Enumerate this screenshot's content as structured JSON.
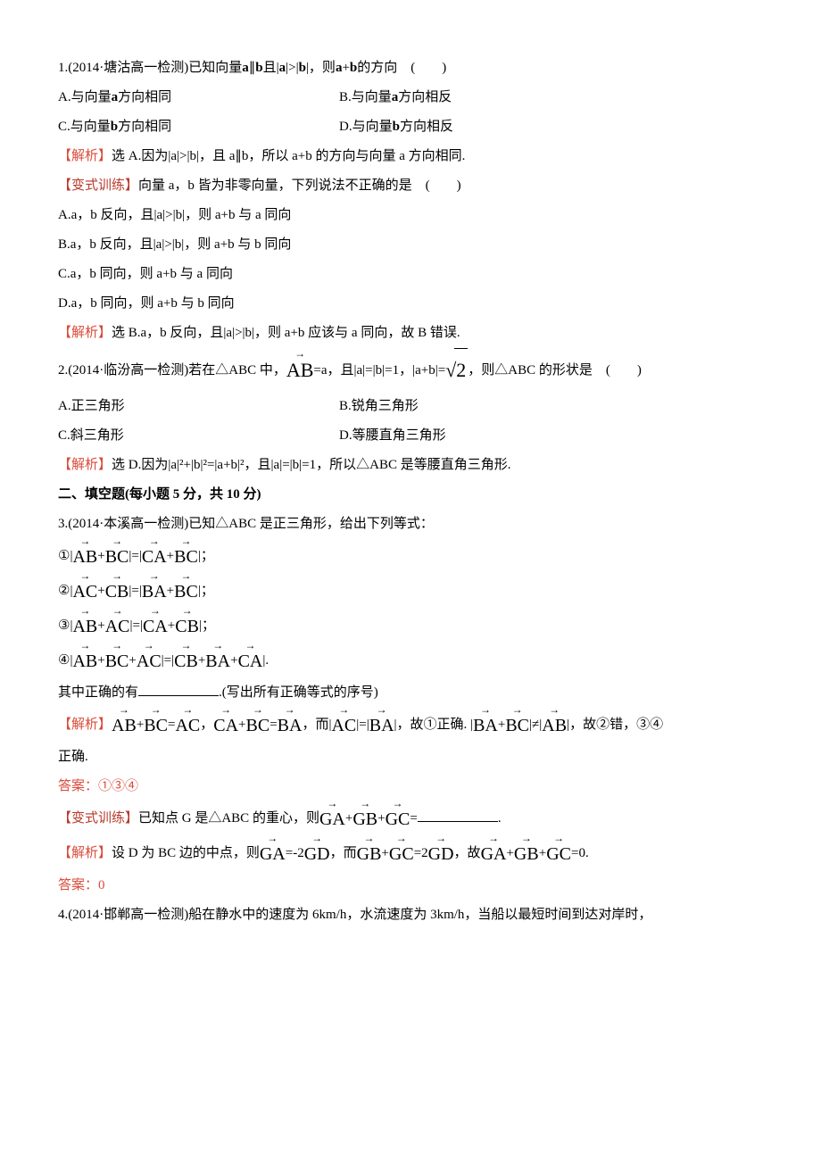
{
  "q1": {
    "stem_a": "1.(2014·塘沽高一检测)已知向量",
    "stem_b": "a",
    "stem_c": "∥",
    "stem_d": "b",
    "stem_e": "且|",
    "stem_f": "a",
    "stem_g": "|>|",
    "stem_h": "b",
    "stem_i": "|，则",
    "stem_j": "a",
    "stem_k": "+",
    "stem_l": "b",
    "stem_m": "的方向　(　　)",
    "optA": "A.与向量",
    "optA_v": "a",
    "optA_t": "方向相同",
    "optB": "B.与向量",
    "optB_v": "a",
    "optB_t": "方向相反",
    "optC": "C.与向量",
    "optC_v": "b",
    "optC_t": "方向相同",
    "optD": "D.与向量",
    "optD_v": "b",
    "optD_t": "方向相反",
    "sol_tag": "【解析】",
    "sol": "选 A.因为|a|>|b|，且 a∥b，所以 a+b 的方向与向量 a 方向相同."
  },
  "v1": {
    "tag": "【变式训练】",
    "stem": "向量 a，b 皆为非零向量，下列说法不正确的是　(　　)",
    "A": "A.a，b 反向，且|a|>|b|，则 a+b 与 a 同向",
    "B": "B.a，b 反向，且|a|>|b|，则 a+b 与 b 同向",
    "C": "C.a，b 同向，则 a+b 与 a 同向",
    "D": "D.a，b 同向，则 a+b 与 b 同向",
    "sol_tag": "【解析】",
    "sol": "选 B.a，b 反向，且|a|>|b|，则 a+b 应该与 a 同向，故 B 错误."
  },
  "q2": {
    "stem_a": "2.(2014·临汾高一检测)若在△ABC 中，",
    "vec": "AB",
    "stem_b": "=a，且|a|=|b|=1，|a+b|=",
    "rad": "2",
    "stem_c": "，则△ABC 的形状是　(　　)",
    "A": "A.正三角形",
    "B": "B.锐角三角形",
    "C": "C.斜三角形",
    "D": "D.等腰直角三角形",
    "sol_tag": "【解析】",
    "sol": "选 D.因为|a|²+|b|²=|a+b|²，且|a|=|b|=1，所以△ABC 是等腰直角三角形."
  },
  "sec2": "二、填空题(每小题 5 分，共 10 分)",
  "q3": {
    "stem": "3.(2014·本溪高一检测)已知△ABC 是正三角形，给出下列等式：",
    "e1_a": "①|",
    "e1_v1": "AB",
    "e1_p": "+",
    "e1_v2": "BC",
    "e1_m": "|=|",
    "e1_v3": "CA",
    "e1_p2": "+",
    "e1_v4": "BC",
    "e1_e": "|；",
    "e2_a": "②|",
    "e2_v1": "AC",
    "e2_p": "+",
    "e2_v2": "CB",
    "e2_m": "|=|",
    "e2_v3": "BA",
    "e2_p2": "+",
    "e2_v4": "BC",
    "e2_e": "|；",
    "e3_a": "③|",
    "e3_v1": "AB",
    "e3_p": "+",
    "e3_v2": "AC",
    "e3_m": "|=|",
    "e3_v3": "CA",
    "e3_p2": "+",
    "e3_v4": "CB",
    "e3_e": "|；",
    "e4_a": "④|",
    "e4_v1": "AB",
    "e4_p": "+",
    "e4_v2": "BC",
    "e4_p2": "+",
    "e4_v3": "AC",
    "e4_m": "|=|",
    "e4_v4": "CB",
    "e4_p3": "+",
    "e4_v5": "BA",
    "e4_p4": "+",
    "e4_v6": "CA",
    "e4_e": "|.",
    "tail_a": "其中正确的有",
    "tail_b": ".(写出所有正确等式的序号)",
    "sol_tag": "【解析】",
    "s_v1": "AB",
    "s_p1": "+",
    "s_v2": "BC",
    "s_eq1": "=",
    "s_v3": "AC",
    "s_c1": "，",
    "s_v4": "CA",
    "s_p2": "+",
    "s_v5": "BC",
    "s_eq2": "=",
    "s_v6": "BA",
    "s_txt1": "，而|",
    "s_v7": "AC",
    "s_m1": "|=|",
    "s_v8": "BA",
    "s_txt2": "|，故①正确. |",
    "s_v9": "BA",
    "s_p3": "+",
    "s_v10": "BC",
    "s_ne": "|≠|",
    "s_v11": "AB",
    "s_txt3": "|，故②错，③④",
    "sol_cont": "正确.",
    "ans_tag": "答案：",
    "ans": "①③④"
  },
  "v2": {
    "tag": "【变式训练】",
    "stem_a": "已知点 G 是△ABC 的重心，则",
    "v1": "GA",
    "p1": "+",
    "v2": "GB",
    "p2": "+",
    "v3": "GC",
    "eq": "=",
    "tail": ".",
    "sol_tag": "【解析】",
    "sol_a": "设 D 为 BC 边的中点，则",
    "sv1": "GA",
    "seq1": "=-2",
    "sv2": "GD",
    "sc1": "，而",
    "sv3": "GB",
    "sp1": "+",
    "sv4": "GC",
    "seq2": "=2",
    "sv5": "GD",
    "sc2": "，故",
    "sv6": "GA",
    "sp2": "+",
    "sv7": "GB",
    "sp3": "+",
    "sv8": "GC",
    "seq3": "=0.",
    "ans_tag": "答案：",
    "ans": "0"
  },
  "q4": {
    "stem": "4.(2014·邯郸高一检测)船在静水中的速度为 6km/h，水流速度为 3km/h，当船以最短时间到达对岸时，"
  }
}
